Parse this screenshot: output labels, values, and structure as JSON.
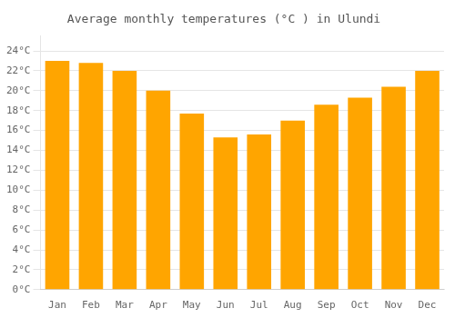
{
  "chart_data": {
    "type": "bar",
    "title": "Average monthly temperatures (°C ) in Ulundi",
    "categories": [
      "Jan",
      "Feb",
      "Mar",
      "Apr",
      "May",
      "Jun",
      "Jul",
      "Aug",
      "Sep",
      "Oct",
      "Nov",
      "Dec"
    ],
    "values": [
      23,
      22.8,
      22,
      20,
      17.7,
      15.3,
      15.6,
      17,
      18.6,
      19.3,
      20.4,
      22
    ],
    "color": "#FFA500",
    "ylim": [
      0,
      25.5
    ],
    "yticks": [
      {
        "value": 0,
        "label": "0°C"
      },
      {
        "value": 2,
        "label": "2°C"
      },
      {
        "value": 4,
        "label": "4°C"
      },
      {
        "value": 6,
        "label": "6°C"
      },
      {
        "value": 8,
        "label": "8°C"
      },
      {
        "value": 10,
        "label": "10°C"
      },
      {
        "value": 12,
        "label": "12°C"
      },
      {
        "value": 14,
        "label": "14°C"
      },
      {
        "value": 16,
        "label": "16°C"
      },
      {
        "value": 18,
        "label": "18°C"
      },
      {
        "value": 20,
        "label": "20°C"
      },
      {
        "value": 22,
        "label": "22°C"
      },
      {
        "value": 24,
        "label": "24°C"
      }
    ],
    "grid": true
  }
}
